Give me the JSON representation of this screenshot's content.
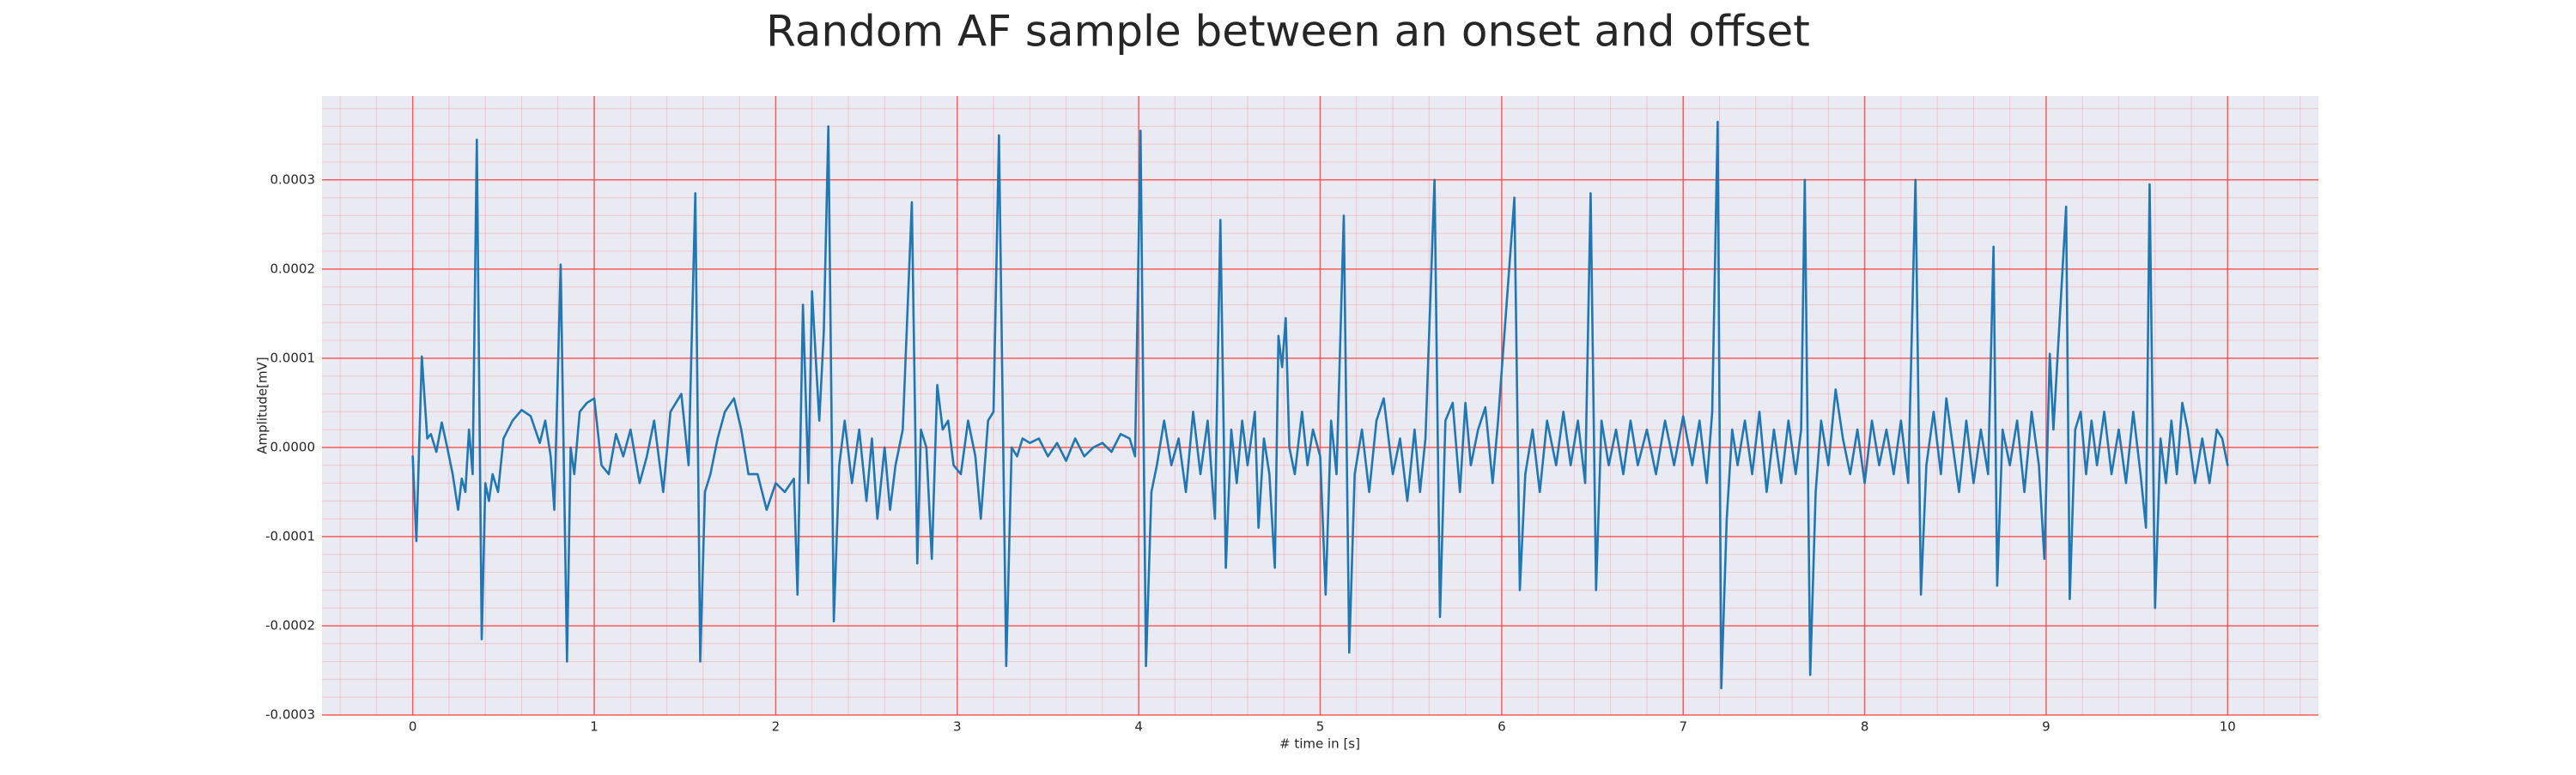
{
  "chart_data": {
    "type": "line",
    "title": "Random AF sample between an onset and offset",
    "x_label": "# time in [s]",
    "y_label": "Amplitude[mV]",
    "color": "#1f77b4",
    "grid": true,
    "grid_color": "#ff4d4d",
    "background": "#eaeaf2",
    "xlim": [
      -0.5,
      10.5
    ],
    "ylim": [
      -0.0003,
      0.000394
    ],
    "xticks": [
      0,
      1,
      2,
      3,
      4,
      5,
      6,
      7,
      8,
      9,
      10
    ],
    "yticks": [
      -0.0003,
      -0.0002,
      -0.0001,
      {
        "value": 0,
        "label": "0.0000"
      },
      0.0001,
      0.0002,
      0.0003
    ],
    "x": [
      0.0,
      0.02,
      0.05,
      0.08,
      0.1,
      0.13,
      0.16,
      0.19,
      0.22,
      0.25,
      0.27,
      0.29,
      0.31,
      0.33,
      0.353,
      0.38,
      0.4,
      0.42,
      0.44,
      0.47,
      0.5,
      0.55,
      0.6,
      0.65,
      0.7,
      0.73,
      0.76,
      0.78,
      0.815,
      0.85,
      0.87,
      0.89,
      0.92,
      0.96,
      1.0,
      1.04,
      1.08,
      1.12,
      1.16,
      1.2,
      1.25,
      1.29,
      1.33,
      1.38,
      1.42,
      1.48,
      1.52,
      1.557,
      1.584,
      1.61,
      1.64,
      1.68,
      1.72,
      1.77,
      1.81,
      1.85,
      1.9,
      1.95,
      2.0,
      2.05,
      2.1,
      2.12,
      2.15,
      2.18,
      2.2,
      2.24,
      2.265,
      2.29,
      2.32,
      2.35,
      2.38,
      2.42,
      2.46,
      2.5,
      2.53,
      2.56,
      2.6,
      2.63,
      2.66,
      2.7,
      2.75,
      2.78,
      2.8,
      2.83,
      2.86,
      2.89,
      2.92,
      2.95,
      2.98,
      3.02,
      3.06,
      3.1,
      3.13,
      3.17,
      3.2,
      3.23,
      3.27,
      3.3,
      3.33,
      3.36,
      3.4,
      3.45,
      3.5,
      3.55,
      3.6,
      3.65,
      3.7,
      3.75,
      3.8,
      3.85,
      3.9,
      3.95,
      3.98,
      4.01,
      4.04,
      4.07,
      4.1,
      4.14,
      4.18,
      4.22,
      4.26,
      4.3,
      4.34,
      4.38,
      4.42,
      4.45,
      4.48,
      4.51,
      4.54,
      4.57,
      4.6,
      4.64,
      4.66,
      4.69,
      4.72,
      4.75,
      4.77,
      4.79,
      4.81,
      4.83,
      4.86,
      4.9,
      4.93,
      4.96,
      5.0,
      5.03,
      5.06,
      5.09,
      5.13,
      5.16,
      5.19,
      5.23,
      5.27,
      5.31,
      5.35,
      5.4,
      5.44,
      5.48,
      5.52,
      5.55,
      5.58,
      5.63,
      5.66,
      5.69,
      5.73,
      5.77,
      5.8,
      5.83,
      5.87,
      5.91,
      5.95,
      5.98,
      6.07,
      6.1,
      6.13,
      6.17,
      6.21,
      6.25,
      6.3,
      6.34,
      6.38,
      6.42,
      6.46,
      6.49,
      6.52,
      6.55,
      6.59,
      6.63,
      6.67,
      6.71,
      6.75,
      6.8,
      6.85,
      6.9,
      6.95,
      7.0,
      7.05,
      7.09,
      7.13,
      7.16,
      7.19,
      7.21,
      7.24,
      7.27,
      7.3,
      7.34,
      7.38,
      7.42,
      7.46,
      7.5,
      7.54,
      7.58,
      7.62,
      7.65,
      7.67,
      7.7,
      7.73,
      7.76,
      7.8,
      7.84,
      7.88,
      7.92,
      7.96,
      8.0,
      8.04,
      8.08,
      8.12,
      8.16,
      8.2,
      8.24,
      8.28,
      8.31,
      8.34,
      8.38,
      8.42,
      8.45,
      8.48,
      8.52,
      8.56,
      8.6,
      8.64,
      8.68,
      8.71,
      8.73,
      8.76,
      8.8,
      8.84,
      8.88,
      8.92,
      8.96,
      8.99,
      9.02,
      9.04,
      9.11,
      9.13,
      9.16,
      9.19,
      9.22,
      9.25,
      9.28,
      9.32,
      9.36,
      9.4,
      9.44,
      9.48,
      9.52,
      9.55,
      9.57,
      9.6,
      9.63,
      9.66,
      9.69,
      9.72,
      9.75,
      9.78,
      9.82,
      9.86,
      9.9,
      9.94,
      9.97,
      10.0
    ],
    "values": [
      -1e-05,
      -0.000105,
      0.000102,
      1e-05,
      1.5e-05,
      -5e-06,
      2.8e-05,
      0,
      -3e-05,
      -7e-05,
      -3.5e-05,
      -5e-05,
      2e-05,
      -3e-05,
      0.000345,
      -0.000215,
      -4e-05,
      -6e-05,
      -3e-05,
      -5e-05,
      1e-05,
      3e-05,
      4.2e-05,
      3.5e-05,
      5e-06,
      3e-05,
      -1e-05,
      -7e-05,
      0.000205,
      -0.00024,
      0,
      -3e-05,
      4e-05,
      5e-05,
      5.5e-05,
      -2e-05,
      -3e-05,
      1.5e-05,
      -1e-05,
      2e-05,
      -4e-05,
      -1e-05,
      3e-05,
      -5e-05,
      4e-05,
      6e-05,
      -2e-05,
      0.000285,
      -0.00024,
      -5e-05,
      -3e-05,
      1e-05,
      4e-05,
      5.5e-05,
      2e-05,
      -3e-05,
      -3e-05,
      -7e-05,
      -4e-05,
      -5e-05,
      -3.5e-05,
      -0.000165,
      0.00016,
      -4e-05,
      0.000175,
      3e-05,
      0.00013,
      0.00036,
      -0.000195,
      -2e-05,
      3e-05,
      -4e-05,
      2e-05,
      -6e-05,
      1e-05,
      -8e-05,
      0,
      -7e-05,
      -2e-05,
      2e-05,
      0.000275,
      -0.00013,
      2e-05,
      0,
      -0.000125,
      7e-05,
      2e-05,
      3e-05,
      -2e-05,
      -3e-05,
      3e-05,
      -1e-05,
      -8e-05,
      3e-05,
      4e-05,
      0.00035,
      -0.000245,
      0,
      -1e-05,
      1e-05,
      5e-06,
      1e-05,
      -1e-05,
      5e-06,
      -1.5e-05,
      1e-05,
      -1e-05,
      0,
      5e-06,
      -5e-06,
      1.5e-05,
      1e-05,
      -1e-05,
      0.000355,
      -0.000245,
      -5e-05,
      -2e-05,
      3e-05,
      -2e-05,
      1e-05,
      -5e-05,
      4e-05,
      -3e-05,
      3e-05,
      -8e-05,
      0.000255,
      -0.000135,
      2e-05,
      -4e-05,
      3e-05,
      -2e-05,
      4e-05,
      -9e-05,
      1e-05,
      -3e-05,
      -0.000135,
      0.000125,
      9e-05,
      0.000145,
      0,
      -3e-05,
      4e-05,
      -2e-05,
      2e-05,
      -1e-05,
      -0.000165,
      3e-05,
      -3e-05,
      0.00026,
      -0.00023,
      -3e-05,
      2e-05,
      -5e-05,
      3e-05,
      5.5e-05,
      -3e-05,
      1e-05,
      -6e-05,
      2e-05,
      -5e-05,
      1e-05,
      0.0003,
      -0.00019,
      3e-05,
      5e-05,
      -5e-05,
      5e-05,
      -2e-05,
      2e-05,
      4.5e-05,
      -4e-05,
      3e-05,
      0.00028,
      -0.00016,
      -3e-05,
      2e-05,
      -5e-05,
      3e-05,
      -2e-05,
      4e-05,
      -2e-05,
      3e-05,
      -4e-05,
      0.000285,
      -0.00016,
      3e-05,
      -2e-05,
      2e-05,
      -3e-05,
      3e-05,
      -2e-05,
      2e-05,
      -3e-05,
      3e-05,
      -2e-05,
      3.5e-05,
      -2e-05,
      3e-05,
      -4e-05,
      4e-05,
      0.000365,
      -0.00027,
      -8e-05,
      2e-05,
      -2e-05,
      3e-05,
      -3e-05,
      4e-05,
      -5e-05,
      2e-05,
      -4e-05,
      3e-05,
      -3e-05,
      2e-05,
      0.0003,
      -0.000255,
      -5e-05,
      3e-05,
      -2e-05,
      6.5e-05,
      1e-05,
      -3e-05,
      2e-05,
      -4e-05,
      3e-05,
      -2e-05,
      2e-05,
      -3e-05,
      3e-05,
      -4e-05,
      0.0003,
      -0.000165,
      -2e-05,
      4e-05,
      -3e-05,
      5.5e-05,
      1e-05,
      -5e-05,
      3e-05,
      -4e-05,
      2e-05,
      -3e-05,
      0.000225,
      -0.000155,
      2e-05,
      -2e-05,
      3e-05,
      -5e-05,
      4e-05,
      -2e-05,
      -0.000125,
      0.000105,
      2e-05,
      0.00027,
      -0.00017,
      2e-05,
      4e-05,
      -3e-05,
      3e-05,
      -2e-05,
      4e-05,
      -3e-05,
      2e-05,
      -4e-05,
      4e-05,
      -3e-05,
      -9e-05,
      0.000295,
      -0.00018,
      1e-05,
      -4e-05,
      3e-05,
      -3e-05,
      5e-05,
      2e-05,
      -4e-05,
      1e-05,
      -4e-05,
      2e-05,
      1e-05,
      -2e-05
    ]
  }
}
